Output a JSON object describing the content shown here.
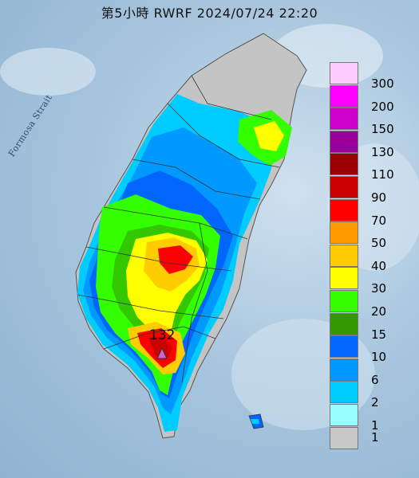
{
  "title": "第5小時  RWRF 2024/07/24 22:20",
  "sea_label": "Formosa Strait",
  "peak": {
    "value": "132",
    "marker": "triangle-marker-icon",
    "marker_color": "#cc66cc"
  },
  "legend": {
    "items": [
      {
        "label": "300",
        "color": "#ffccff"
      },
      {
        "label": "200",
        "color": "#ff00ff"
      },
      {
        "label": "150",
        "color": "#cc00cc"
      },
      {
        "label": "130",
        "color": "#990099"
      },
      {
        "label": "110",
        "color": "#990000"
      },
      {
        "label": "90",
        "color": "#cc0000"
      },
      {
        "label": "70",
        "color": "#ff0000"
      },
      {
        "label": "50",
        "color": "#ff9900"
      },
      {
        "label": "40",
        "color": "#ffcc00"
      },
      {
        "label": "30",
        "color": "#ffff00"
      },
      {
        "label": "20",
        "color": "#33ff00"
      },
      {
        "label": "15",
        "color": "#339900"
      },
      {
        "label": "10",
        "color": "#0066ff"
      },
      {
        "label": "6",
        "color": "#0099ff"
      },
      {
        "label": "2",
        "color": "#00ccff"
      },
      {
        "label": "1",
        "color": "#99ffff"
      },
      {
        "label": "1",
        "color": "#c8c8c8"
      }
    ]
  }
}
